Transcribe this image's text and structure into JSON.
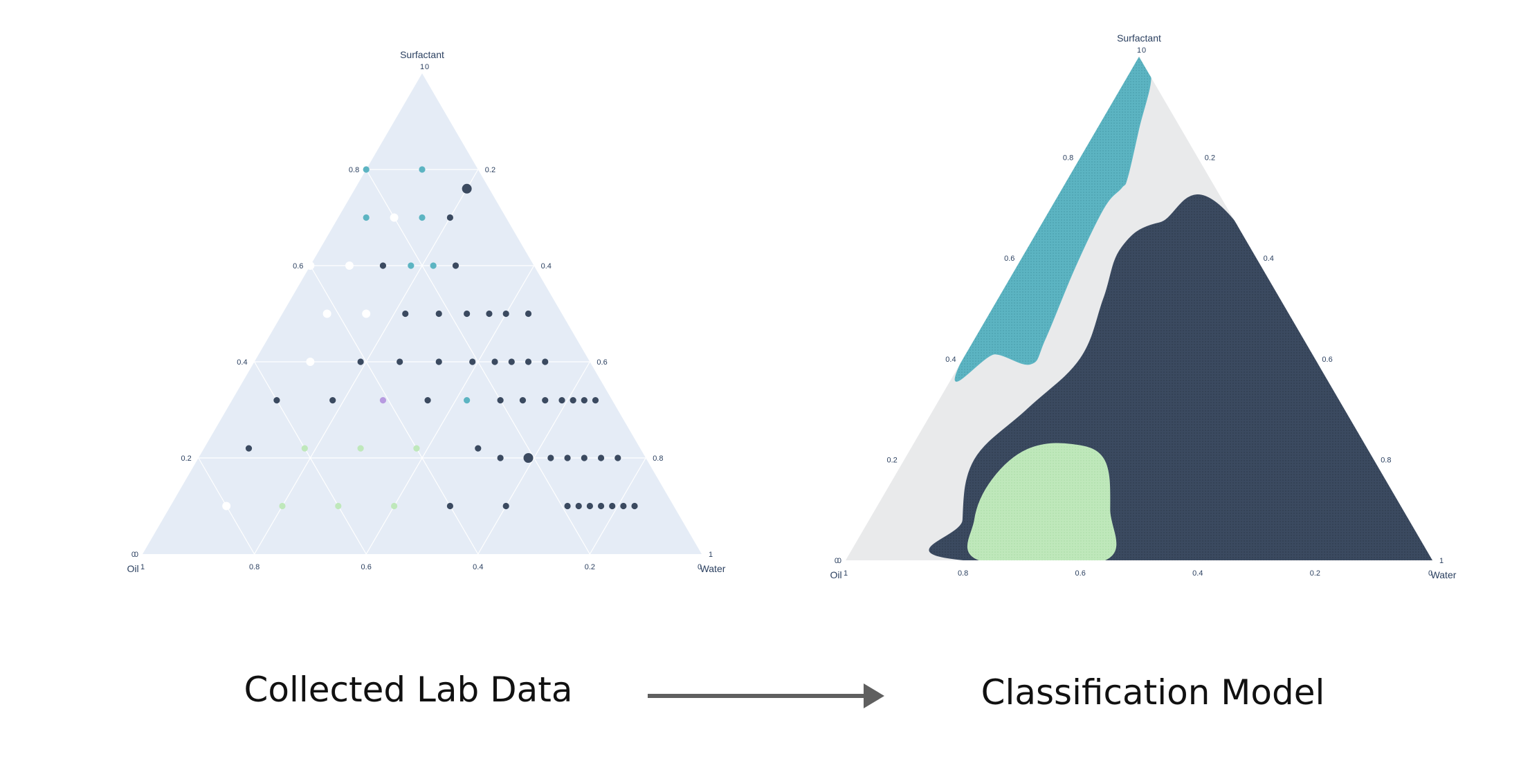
{
  "captions": {
    "left": "Collected Lab Data",
    "right": "Classification Model"
  },
  "colors": {
    "plot_bg": "#e5ecf6",
    "model_bg": "#e9eaeb",
    "dark": "#3b4a60",
    "teal": "#5cb4c2",
    "white": "#ffffff",
    "lightgreen": "#bfe8bb",
    "purple": "#b79ae0",
    "arrow": "#5f5f5f",
    "axis_text": "#2a3f5f"
  },
  "chart_data": [
    {
      "type": "scatter",
      "subtype": "ternary",
      "title": "",
      "axes": {
        "a": {
          "title": "Surfactant",
          "ticks": [
            "0",
            "0.2",
            "0.4",
            "0.6",
            "0.8",
            "1"
          ]
        },
        "b": {
          "title": "Oil",
          "ticks": [
            "0",
            "0.2",
            "0.4",
            "0.6",
            "0.8",
            "1"
          ]
        },
        "c": {
          "title": "Water",
          "ticks": [
            "0",
            "0.2",
            "0.4",
            "0.6",
            "0.8",
            "1"
          ]
        }
      },
      "grid": true,
      "points": [
        {
          "surfactant": 0.8,
          "oil": 0.2,
          "water": 0.0,
          "color": "teal"
        },
        {
          "surfactant": 0.8,
          "oil": 0.1,
          "water": 0.1,
          "color": "teal"
        },
        {
          "surfactant": 0.76,
          "oil": 0.04,
          "water": 0.2,
          "color": "dark",
          "size": "large"
        },
        {
          "surfactant": 0.7,
          "oil": 0.25,
          "water": 0.05,
          "color": "teal"
        },
        {
          "surfactant": 0.7,
          "oil": 0.2,
          "water": 0.1,
          "color": "white"
        },
        {
          "surfactant": 0.7,
          "oil": 0.15,
          "water": 0.15,
          "color": "teal"
        },
        {
          "surfactant": 0.7,
          "oil": 0.1,
          "water": 0.2,
          "color": "dark"
        },
        {
          "surfactant": 0.6,
          "oil": 0.4,
          "water": 0.0,
          "color": "white"
        },
        {
          "surfactant": 0.6,
          "oil": 0.33,
          "water": 0.07,
          "color": "white"
        },
        {
          "surfactant": 0.6,
          "oil": 0.27,
          "water": 0.13,
          "color": "dark"
        },
        {
          "surfactant": 0.6,
          "oil": 0.22,
          "water": 0.18,
          "color": "teal"
        },
        {
          "surfactant": 0.6,
          "oil": 0.18,
          "water": 0.22,
          "color": "teal"
        },
        {
          "surfactant": 0.6,
          "oil": 0.14,
          "water": 0.26,
          "color": "dark"
        },
        {
          "surfactant": 0.5,
          "oil": 0.42,
          "water": 0.08,
          "color": "white"
        },
        {
          "surfactant": 0.5,
          "oil": 0.35,
          "water": 0.15,
          "color": "white"
        },
        {
          "surfactant": 0.5,
          "oil": 0.28,
          "water": 0.22,
          "color": "dark"
        },
        {
          "surfactant": 0.5,
          "oil": 0.22,
          "water": 0.28,
          "color": "dark"
        },
        {
          "surfactant": 0.5,
          "oil": 0.17,
          "water": 0.33,
          "color": "dark"
        },
        {
          "surfactant": 0.5,
          "oil": 0.13,
          "water": 0.37,
          "color": "dark"
        },
        {
          "surfactant": 0.5,
          "oil": 0.1,
          "water": 0.4,
          "color": "dark"
        },
        {
          "surfactant": 0.5,
          "oil": 0.06,
          "water": 0.44,
          "color": "dark"
        },
        {
          "surfactant": 0.4,
          "oil": 0.5,
          "water": 0.1,
          "color": "white"
        },
        {
          "surfactant": 0.4,
          "oil": 0.41,
          "water": 0.19,
          "color": "dark"
        },
        {
          "surfactant": 0.4,
          "oil": 0.34,
          "water": 0.26,
          "color": "dark"
        },
        {
          "surfactant": 0.4,
          "oil": 0.27,
          "water": 0.33,
          "color": "dark"
        },
        {
          "surfactant": 0.4,
          "oil": 0.21,
          "water": 0.39,
          "color": "dark"
        },
        {
          "surfactant": 0.4,
          "oil": 0.17,
          "water": 0.43,
          "color": "dark"
        },
        {
          "surfactant": 0.4,
          "oil": 0.14,
          "water": 0.46,
          "color": "dark"
        },
        {
          "surfactant": 0.4,
          "oil": 0.11,
          "water": 0.49,
          "color": "dark"
        },
        {
          "surfactant": 0.4,
          "oil": 0.08,
          "water": 0.52,
          "color": "dark"
        },
        {
          "surfactant": 0.32,
          "oil": 0.6,
          "water": 0.08,
          "color": "dark"
        },
        {
          "surfactant": 0.32,
          "oil": 0.5,
          "water": 0.18,
          "color": "dark"
        },
        {
          "surfactant": 0.32,
          "oil": 0.41,
          "water": 0.27,
          "color": "purple"
        },
        {
          "surfactant": 0.32,
          "oil": 0.33,
          "water": 0.35,
          "color": "dark"
        },
        {
          "surfactant": 0.32,
          "oil": 0.26,
          "water": 0.42,
          "color": "teal"
        },
        {
          "surfactant": 0.32,
          "oil": 0.2,
          "water": 0.48,
          "color": "dark"
        },
        {
          "surfactant": 0.32,
          "oil": 0.16,
          "water": 0.52,
          "color": "dark"
        },
        {
          "surfactant": 0.32,
          "oil": 0.12,
          "water": 0.56,
          "color": "dark"
        },
        {
          "surfactant": 0.32,
          "oil": 0.09,
          "water": 0.59,
          "color": "dark"
        },
        {
          "surfactant": 0.32,
          "oil": 0.07,
          "water": 0.61,
          "color": "dark"
        },
        {
          "surfactant": 0.32,
          "oil": 0.05,
          "water": 0.63,
          "color": "dark"
        },
        {
          "surfactant": 0.32,
          "oil": 0.03,
          "water": 0.65,
          "color": "dark"
        },
        {
          "surfactant": 0.22,
          "oil": 0.7,
          "water": 0.08,
          "color": "dark"
        },
        {
          "surfactant": 0.22,
          "oil": 0.6,
          "water": 0.18,
          "color": "lightgreen"
        },
        {
          "surfactant": 0.22,
          "oil": 0.5,
          "water": 0.28,
          "color": "lightgreen"
        },
        {
          "surfactant": 0.22,
          "oil": 0.4,
          "water": 0.38,
          "color": "lightgreen"
        },
        {
          "surfactant": 0.22,
          "oil": 0.29,
          "water": 0.49,
          "color": "dark"
        },
        {
          "surfactant": 0.2,
          "oil": 0.26,
          "water": 0.54,
          "color": "dark"
        },
        {
          "surfactant": 0.2,
          "oil": 0.21,
          "water": 0.59,
          "color": "dark",
          "size": "large"
        },
        {
          "surfactant": 0.2,
          "oil": 0.17,
          "water": 0.63,
          "color": "dark"
        },
        {
          "surfactant": 0.2,
          "oil": 0.14,
          "water": 0.66,
          "color": "dark"
        },
        {
          "surfactant": 0.2,
          "oil": 0.11,
          "water": 0.69,
          "color": "dark"
        },
        {
          "surfactant": 0.2,
          "oil": 0.08,
          "water": 0.72,
          "color": "dark"
        },
        {
          "surfactant": 0.2,
          "oil": 0.05,
          "water": 0.75,
          "color": "dark"
        },
        {
          "surfactant": 0.1,
          "oil": 0.8,
          "water": 0.1,
          "color": "white"
        },
        {
          "surfactant": 0.1,
          "oil": 0.7,
          "water": 0.2,
          "color": "lightgreen"
        },
        {
          "surfactant": 0.1,
          "oil": 0.6,
          "water": 0.3,
          "color": "lightgreen"
        },
        {
          "surfactant": 0.1,
          "oil": 0.5,
          "water": 0.4,
          "color": "lightgreen"
        },
        {
          "surfactant": 0.1,
          "oil": 0.4,
          "water": 0.5,
          "color": "dark"
        },
        {
          "surfactant": 0.1,
          "oil": 0.3,
          "water": 0.6,
          "color": "dark"
        },
        {
          "surfactant": 0.1,
          "oil": 0.19,
          "water": 0.71,
          "color": "dark"
        },
        {
          "surfactant": 0.1,
          "oil": 0.17,
          "water": 0.73,
          "color": "dark"
        },
        {
          "surfactant": 0.1,
          "oil": 0.15,
          "water": 0.75,
          "color": "dark"
        },
        {
          "surfactant": 0.1,
          "oil": 0.13,
          "water": 0.77,
          "color": "dark"
        },
        {
          "surfactant": 0.1,
          "oil": 0.11,
          "water": 0.79,
          "color": "dark"
        },
        {
          "surfactant": 0.1,
          "oil": 0.09,
          "water": 0.81,
          "color": "dark"
        },
        {
          "surfactant": 0.1,
          "oil": 0.07,
          "water": 0.83,
          "color": "dark"
        }
      ]
    },
    {
      "type": "heatmap",
      "subtype": "ternary-classification-regions",
      "title": "",
      "axes": {
        "a": {
          "title": "Surfactant",
          "ticks": [
            "0",
            "0.2",
            "0.4",
            "0.6",
            "0.8",
            "1"
          ]
        },
        "b": {
          "title": "Oil",
          "ticks": [
            "0",
            "0.2",
            "0.4",
            "0.6",
            "0.8",
            "1"
          ]
        },
        "c": {
          "title": "Water",
          "ticks": [
            "0",
            "0.2",
            "0.4",
            "0.6",
            "0.8",
            "1"
          ]
        }
      },
      "background": "model_bg",
      "regions": [
        {
          "color": "teal",
          "boundary": [
            {
              "surfactant": 1.0,
              "oil": 0.0,
              "water": 0.0
            },
            {
              "surfactant": 0.96,
              "oil": 0.0,
              "water": 0.04
            },
            {
              "surfactant": 0.86,
              "oil": 0.07,
              "water": 0.07
            },
            {
              "surfactant": 0.76,
              "oil": 0.14,
              "water": 0.1
            },
            {
              "surfactant": 0.74,
              "oil": 0.16,
              "water": 0.1
            },
            {
              "surfactant": 0.7,
              "oil": 0.21,
              "water": 0.09
            },
            {
              "surfactant": 0.58,
              "oil": 0.32,
              "water": 0.1
            },
            {
              "surfactant": 0.44,
              "oil": 0.44,
              "water": 0.12
            },
            {
              "surfactant": 0.39,
              "oil": 0.49,
              "water": 0.12
            },
            {
              "surfactant": 0.41,
              "oil": 0.54,
              "water": 0.05
            },
            {
              "surfactant": 0.4,
              "oil": 0.6,
              "water": 0.0
            }
          ]
        },
        {
          "color": "dark",
          "boundary": [
            {
              "surfactant": 0.67,
              "oil": 0.13,
              "water": 0.2
            },
            {
              "surfactant": 0.67,
              "oil": 0.0,
              "water": 0.33
            },
            {
              "surfactant": 0.0,
              "oil": 0.0,
              "water": 1.0
            },
            {
              "surfactant": 0.0,
              "oil": 0.79,
              "water": 0.21
            },
            {
              "surfactant": 0.08,
              "oil": 0.76,
              "water": 0.16
            },
            {
              "surfactant": 0.2,
              "oil": 0.68,
              "water": 0.12
            },
            {
              "surfactant": 0.3,
              "oil": 0.54,
              "water": 0.16
            },
            {
              "surfactant": 0.4,
              "oil": 0.4,
              "water": 0.2
            },
            {
              "surfactant": 0.52,
              "oil": 0.3,
              "water": 0.18
            },
            {
              "surfactant": 0.62,
              "oil": 0.22,
              "water": 0.16
            }
          ]
        },
        {
          "color": "lightgreen",
          "boundary": [
            {
              "surfactant": 0.0,
              "oil": 0.77,
              "water": 0.23
            },
            {
              "surfactant": 0.0,
              "oil": 0.56,
              "water": 0.44
            },
            {
              "surfactant": 0.1,
              "oil": 0.5,
              "water": 0.4
            },
            {
              "surfactant": 0.2,
              "oil": 0.46,
              "water": 0.34
            },
            {
              "surfactant": 0.23,
              "oil": 0.5,
              "water": 0.27
            },
            {
              "surfactant": 0.22,
              "oil": 0.58,
              "water": 0.2
            },
            {
              "surfactant": 0.16,
              "oil": 0.67,
              "water": 0.17
            },
            {
              "surfactant": 0.08,
              "oil": 0.74,
              "water": 0.18
            }
          ]
        }
      ]
    }
  ]
}
